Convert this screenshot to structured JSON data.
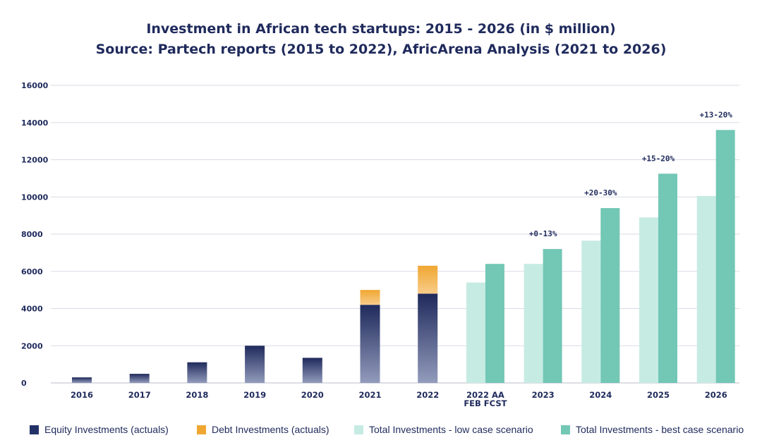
{
  "chart_data": {
    "type": "bar",
    "title": "Investment in African tech startups: 2015 - 2026 (in $ million)",
    "subtitle": "Source: Partech reports (2015 to 2022), AfricArena Analysis (2021 to 2026)",
    "ylim": [
      0,
      16000
    ],
    "yticks": [
      0,
      2000,
      4000,
      6000,
      8000,
      10000,
      12000,
      14000,
      16000
    ],
    "categories": [
      "2016",
      "2017",
      "2018",
      "2019",
      "2020",
      "2021",
      "2022",
      "2022 AA FEB FCST",
      "2023",
      "2024",
      "2025",
      "2026"
    ],
    "category_lines": [
      [
        "2016"
      ],
      [
        "2017"
      ],
      [
        "2018"
      ],
      [
        "2019"
      ],
      [
        "2020"
      ],
      [
        "2021"
      ],
      [
        "2022"
      ],
      [
        "2022 AA",
        "FEB FCST"
      ],
      [
        "2023"
      ],
      [
        "2024"
      ],
      [
        "2025"
      ],
      [
        "2026"
      ]
    ],
    "series": [
      {
        "name": "Equity Investments (actuals)",
        "color": "#233266",
        "stack": "actuals",
        "values": [
          300,
          490,
          1110,
          2000,
          1350,
          4200,
          4800,
          null,
          null,
          null,
          null,
          null
        ]
      },
      {
        "name": "Debt Investments (actuals)",
        "color": "#f0a732",
        "stack": "actuals",
        "values": [
          null,
          null,
          null,
          null,
          null,
          800,
          1500,
          null,
          null,
          null,
          null,
          null
        ]
      },
      {
        "name": "Total Investments - low case scenario",
        "color": "#c6ebe3",
        "stack": "low",
        "values": [
          null,
          null,
          null,
          null,
          null,
          null,
          null,
          5400,
          6400,
          7650,
          8900,
          10050
        ]
      },
      {
        "name": "Total Investments - best case scenario",
        "color": "#72c7b5",
        "stack": "best",
        "values": [
          null,
          null,
          null,
          null,
          null,
          null,
          null,
          6400,
          7200,
          9400,
          11250,
          13600
        ]
      }
    ],
    "annotations": [
      {
        "category": "2023",
        "text": "+0-13%"
      },
      {
        "category": "2024",
        "text": "+20-30%"
      },
      {
        "category": "2025",
        "text": "+15-20%"
      },
      {
        "category": "2026",
        "text": "+13-20%"
      }
    ],
    "legend": {
      "position": "bottom",
      "items": [
        {
          "label": "Equity Investments (actuals)",
          "color": "#233266"
        },
        {
          "label": "Debt Investments (actuals)",
          "color": "#f0a732"
        },
        {
          "label": "Total Investments - low case scenario",
          "color": "#c6ebe3"
        },
        {
          "label": "Total Investments - best case scenario",
          "color": "#72c7b5"
        }
      ]
    }
  }
}
